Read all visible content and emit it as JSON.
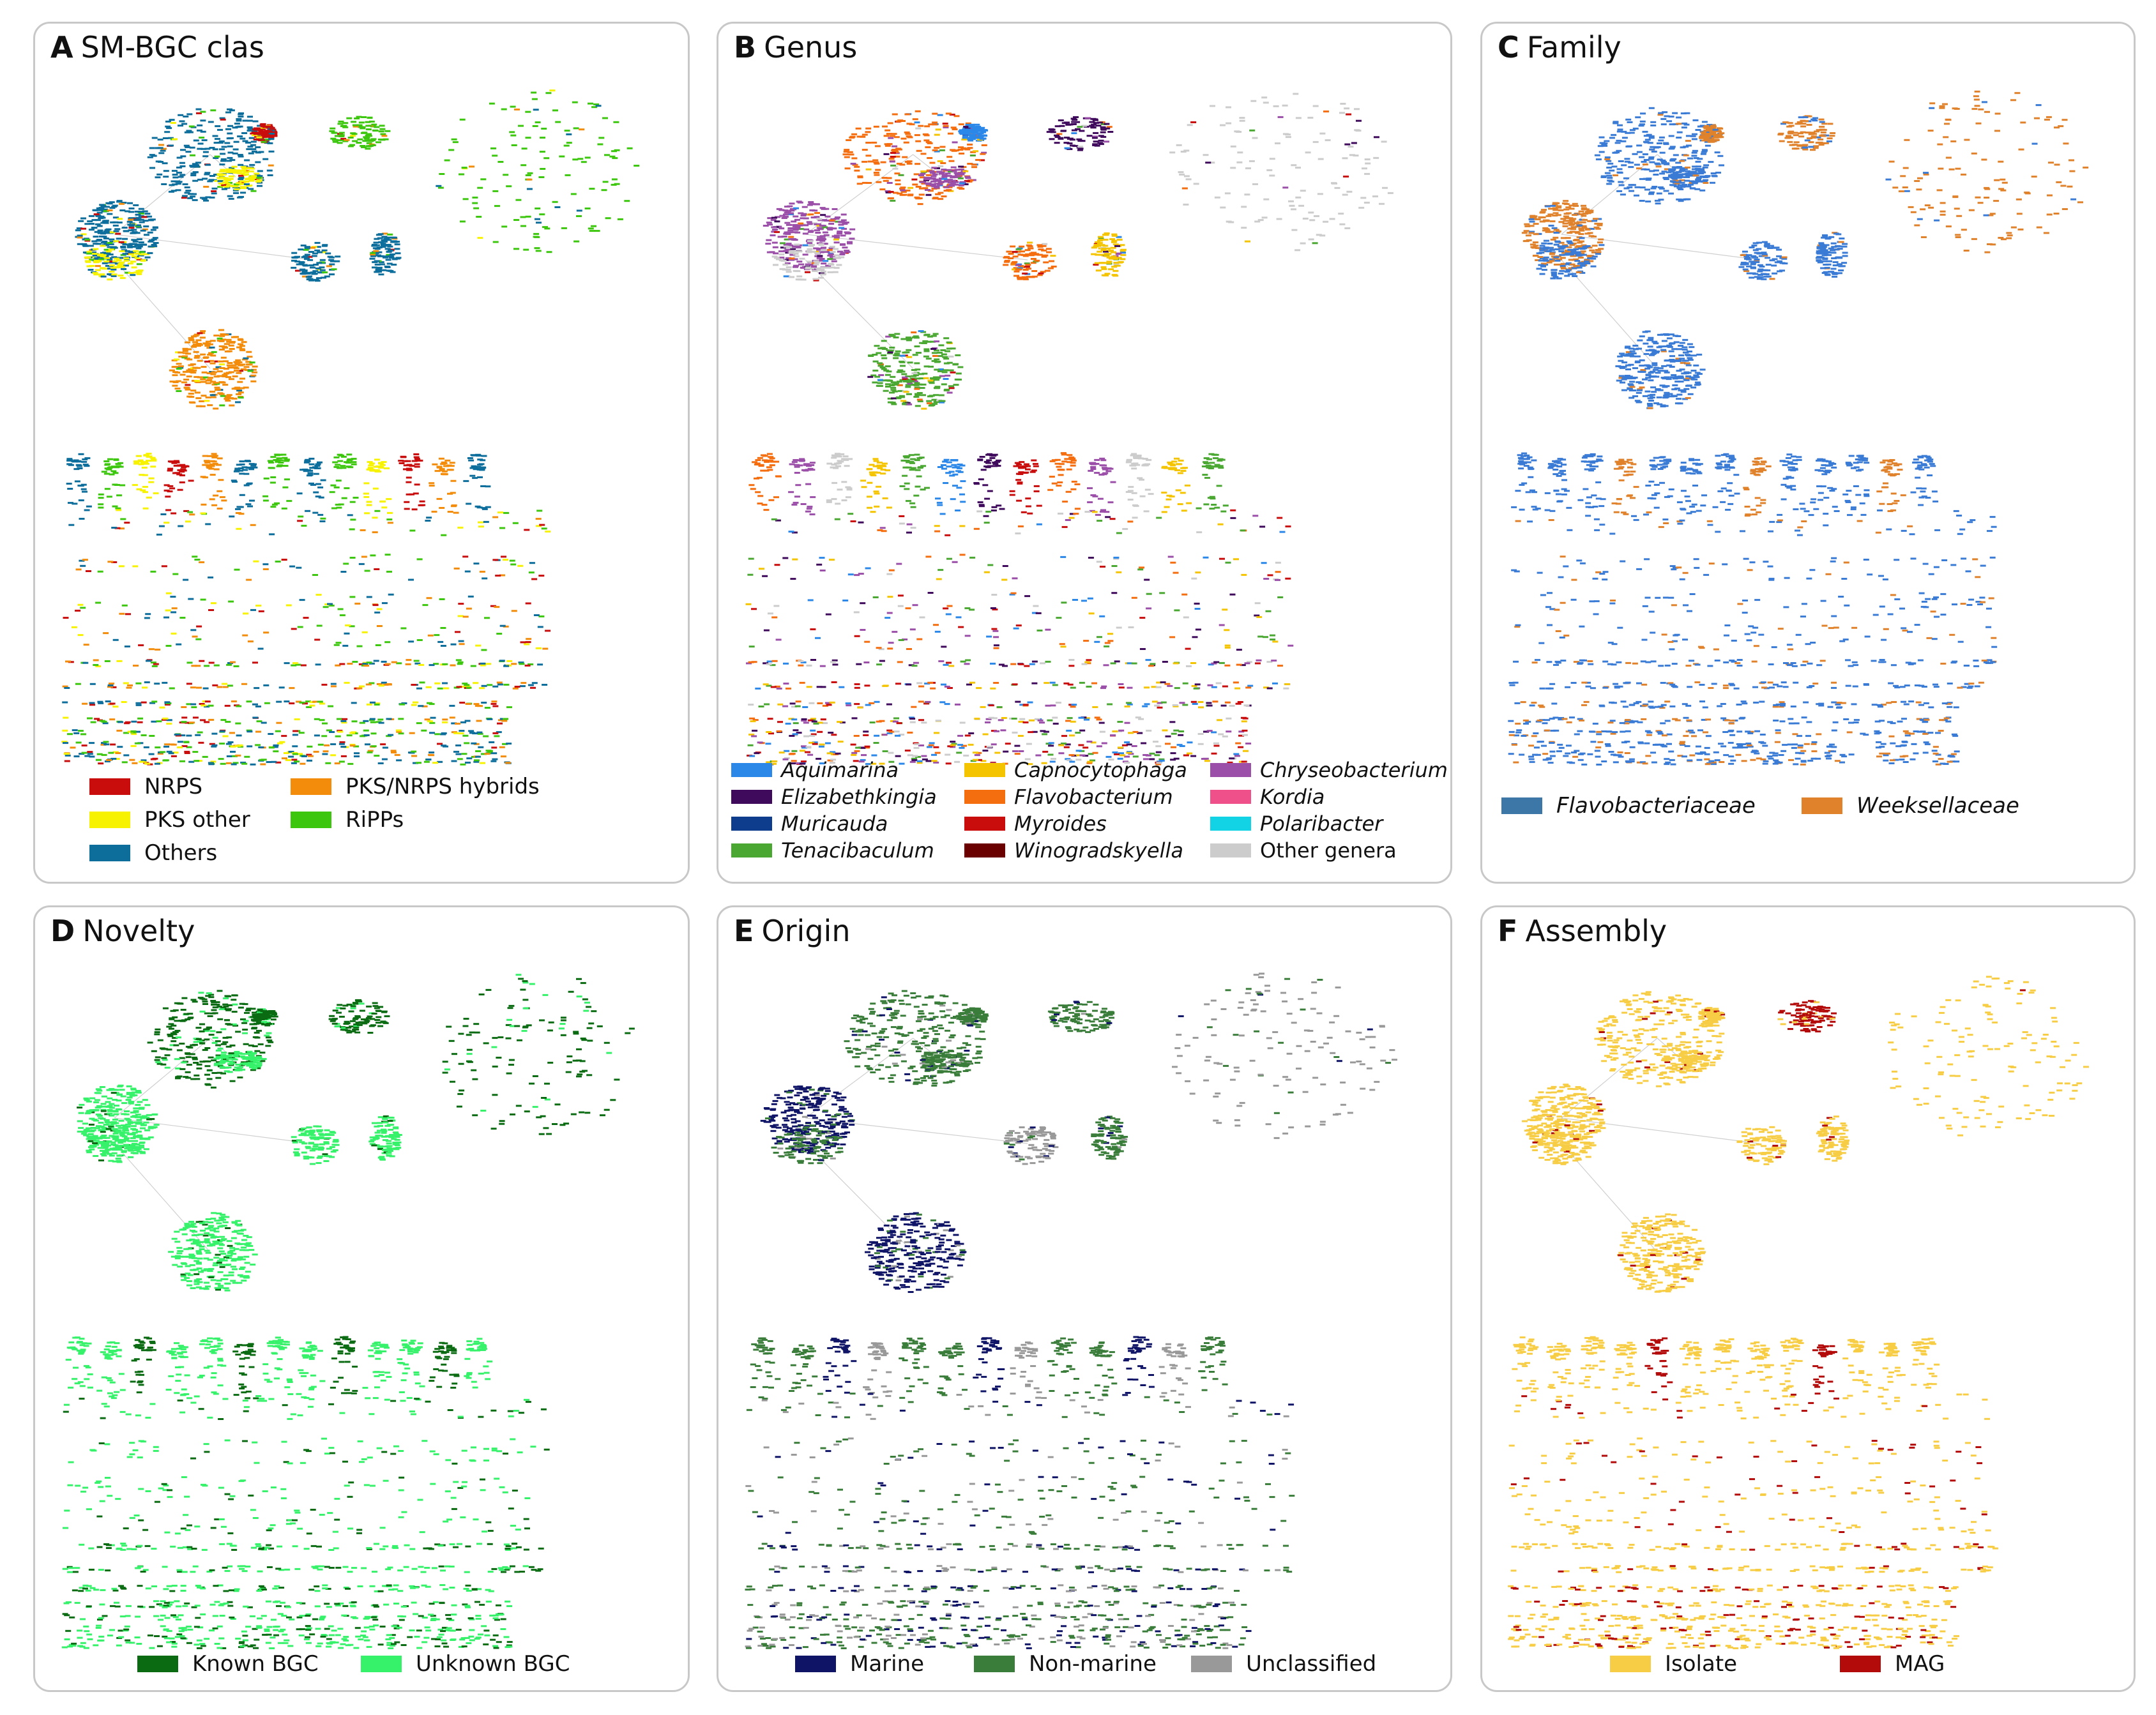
{
  "panels": [
    {
      "letter": "A",
      "title": "SM-BGC clas",
      "cluster_colors": [
        "#0d6e9c",
        "#0d6e9c",
        "#f7f200",
        "#3cc70e",
        "#0d6e9c",
        "#c90c0c",
        "#f28c0a",
        "#0d6e9c",
        "#3cc70e",
        "#f7f200"
      ],
      "dot_colors": [
        "#0d6e9c",
        "#3cc70e",
        "#f7f200",
        "#c90c0c",
        "#f28c0a",
        "#0d6e9c",
        "#3cc70e"
      ],
      "legend": [
        {
          "label": "NRPS",
          "color": "#c90c0c",
          "italic": false
        },
        {
          "label": "PKS/NRPS hybrids",
          "color": "#f28c0a",
          "italic": false
        },
        {
          "label": "PKS other",
          "color": "#f7f200",
          "italic": false
        },
        {
          "label": "RiPPs",
          "color": "#3cc70e",
          "italic": false
        },
        {
          "label": "Others",
          "color": "#0d6e9c",
          "italic": false
        }
      ]
    },
    {
      "letter": "B",
      "title": "Genus",
      "cluster_colors": [
        "#f46d0e",
        "#9b4fa8",
        "#cccccc",
        "#3f0a5c",
        "#f46d0e",
        "#2b88e8",
        "#4aa832",
        "#f5c400",
        "#cccccc",
        "#9b4fa8"
      ],
      "dot_colors": [
        "#f46d0e",
        "#9b4fa8",
        "#cccccc",
        "#f5c400",
        "#4aa832",
        "#2b88e8",
        "#3f0a5c",
        "#c90c0c"
      ],
      "legend": [
        {
          "label": "Aquimarina",
          "color": "#2b88e8",
          "italic": true
        },
        {
          "label": "Capnocytophaga",
          "color": "#f5c400",
          "italic": true
        },
        {
          "label": "Chryseobacterium",
          "color": "#9b4fa8",
          "italic": true
        },
        {
          "label": "Elizabethkingia",
          "color": "#3f0a5c",
          "italic": true
        },
        {
          "label": "Flavobacterium",
          "color": "#f46d0e",
          "italic": true
        },
        {
          "label": "Kordia",
          "color": "#f0508a",
          "italic": true
        },
        {
          "label": "Muricauda",
          "color": "#0d3d8c",
          "italic": true
        },
        {
          "label": "Myroides",
          "color": "#c90c0c",
          "italic": true
        },
        {
          "label": "Polaribacter",
          "color": "#12d2e6",
          "italic": true
        },
        {
          "label": "Tenacibaculum",
          "color": "#4aa832",
          "italic": true
        },
        {
          "label": "Winogradskyella",
          "color": "#6b0000",
          "italic": true
        },
        {
          "label": "Other genera",
          "color": "#cccccc",
          "italic": false
        }
      ]
    },
    {
      "letter": "C",
      "title": "Family",
      "cluster_colors": [
        "#3a7bd5",
        "#e0822b",
        "#3a7bd5",
        "#e0822b",
        "#3a7bd5",
        "#e0822b",
        "#3a7bd5",
        "#3a7bd5",
        "#e0822b",
        "#3a7bd5"
      ],
      "dot_colors": [
        "#3a7bd5",
        "#3a7bd5",
        "#3a7bd5",
        "#e0822b"
      ],
      "legend": [
        {
          "label": "Flavobacteriaceae",
          "color": "#3d77a8",
          "italic": true
        },
        {
          "label": "Weeksellaceae",
          "color": "#e0822b",
          "italic": true
        }
      ]
    },
    {
      "letter": "D",
      "title": "Novelty",
      "cluster_colors": [
        "#0b6b12",
        "#36f26a",
        "#36f26a",
        "#0b6b12",
        "#36f26a",
        "#0b6b12",
        "#36f26a",
        "#36f26a",
        "#0b6b12",
        "#36f26a"
      ],
      "dot_colors": [
        "#36f26a",
        "#36f26a",
        "#0b6b12"
      ],
      "legend": [
        {
          "label": "Known BGC",
          "color": "#0b6b12",
          "italic": false
        },
        {
          "label": "Unknown BGC",
          "color": "#36f26a",
          "italic": false
        }
      ]
    },
    {
      "letter": "E",
      "title": "Origin",
      "cluster_colors": [
        "#3a7d3a",
        "#0f1466",
        "#3a7d3a",
        "#3a7d3a",
        "#999999",
        "#3a7d3a",
        "#0f1466",
        "#3a7d3a",
        "#999999",
        "#3a7d3a"
      ],
      "dot_colors": [
        "#3a7d3a",
        "#3a7d3a",
        "#0f1466",
        "#999999"
      ],
      "legend": [
        {
          "label": "Marine",
          "color": "#0f1466",
          "italic": false
        },
        {
          "label": "Non-marine",
          "color": "#3a7d3a",
          "italic": false
        },
        {
          "label": "Unclassified",
          "color": "#999999",
          "italic": false
        }
      ]
    },
    {
      "letter": "F",
      "title": "Assembly",
      "cluster_colors": [
        "#f7cd45",
        "#f7cd45",
        "#f7cd45",
        "#b30a0a",
        "#f7cd45",
        "#f7cd45",
        "#f7cd45",
        "#f7cd45",
        "#f7cd45",
        "#f7cd45"
      ],
      "dot_colors": [
        "#f7cd45",
        "#f7cd45",
        "#f7cd45",
        "#f7cd45",
        "#b30a0a"
      ],
      "legend": [
        {
          "label": "Isolate",
          "color": "#f7cd45",
          "italic": false
        },
        {
          "label": "MAG",
          "color": "#b30a0a",
          "italic": false
        }
      ]
    }
  ]
}
